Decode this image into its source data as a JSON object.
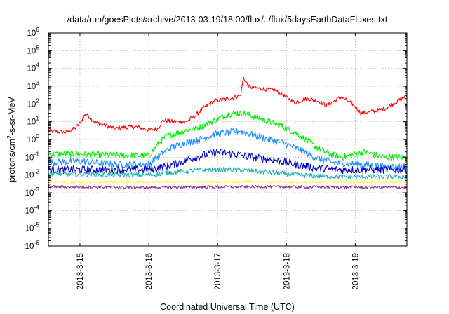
{
  "chart_data": {
    "type": "line",
    "title": "/data/run/goesPlots/archive/2013-03-19/18:00/flux/../flux/5daysEarthDataFluxes.txt",
    "xlabel": "Coordinated Universal Time (UTC)",
    "ylabel_parts": {
      "pre": "protons/cm",
      "sup": "2",
      "post": "-s-sr-MeV"
    },
    "y_scale": "log",
    "ylim": [
      1e-06,
      1000000.0
    ],
    "y_ticks": [
      {
        "base": "10",
        "exp": "-6",
        "value": 1e-06
      },
      {
        "base": "10",
        "exp": "-5",
        "value": 1e-05
      },
      {
        "base": "10",
        "exp": "-4",
        "value": 0.0001
      },
      {
        "base": "10",
        "exp": "-3",
        "value": 0.001
      },
      {
        "base": "10",
        "exp": "-2",
        "value": 0.01
      },
      {
        "base": "10",
        "exp": "-1",
        "value": 0.1
      },
      {
        "base": "10",
        "exp": "0",
        "value": 1
      },
      {
        "base": "10",
        "exp": "1",
        "value": 10
      },
      {
        "base": "10",
        "exp": "2",
        "value": 100
      },
      {
        "base": "10",
        "exp": "3",
        "value": 1000
      },
      {
        "base": "10",
        "exp": "4",
        "value": 10000
      },
      {
        "base": "10",
        "exp": "5",
        "value": 100000
      },
      {
        "base": "10",
        "exp": "6",
        "value": 1000000
      }
    ],
    "xlim": [
      "2013-03-14T13:00",
      "2013-03-19T18:00"
    ],
    "x_ticks": [
      {
        "label": "2013-3-15",
        "value": "2013-03-15T00:00"
      },
      {
        "label": "2013-3-16",
        "value": "2013-03-16T00:00"
      },
      {
        "label": "2013-3-17",
        "value": "2013-03-17T00:00"
      },
      {
        "label": "2013-3-18",
        "value": "2013-03-18T00:00"
      },
      {
        "label": "2013-3-19",
        "value": "2013-03-19T00:00"
      }
    ],
    "grid": true,
    "series": [
      {
        "color": "#ff0000",
        "noise": 0.12,
        "points": [
          [
            "2013-03-14T13:00",
            3
          ],
          [
            "2013-03-14T19:00",
            2.5
          ],
          [
            "2013-03-14T22:00",
            4
          ],
          [
            "2013-03-15T00:00",
            8
          ],
          [
            "2013-03-15T02:00",
            30
          ],
          [
            "2013-03-15T05:00",
            10
          ],
          [
            "2013-03-15T09:00",
            6
          ],
          [
            "2013-03-15T12:00",
            4
          ],
          [
            "2013-03-15T16:00",
            5
          ],
          [
            "2013-03-15T20:00",
            5
          ],
          [
            "2013-03-16T00:00",
            3.5
          ],
          [
            "2013-03-16T03:00",
            4
          ],
          [
            "2013-03-16T05:00",
            12
          ],
          [
            "2013-03-16T09:00",
            10
          ],
          [
            "2013-03-16T13:00",
            10
          ],
          [
            "2013-03-16T16:00",
            20
          ],
          [
            "2013-03-16T19:00",
            60
          ],
          [
            "2013-03-16T23:00",
            150
          ],
          [
            "2013-03-17T04:00",
            200
          ],
          [
            "2013-03-17T08:00",
            300
          ],
          [
            "2013-03-17T09:00",
            3000
          ],
          [
            "2013-03-17T11:00",
            900
          ],
          [
            "2013-03-17T16:00",
            700
          ],
          [
            "2013-03-17T20:00",
            600
          ],
          [
            "2013-03-17T23:00",
            300
          ],
          [
            "2013-03-18T03:00",
            120
          ],
          [
            "2013-03-18T07:00",
            200
          ],
          [
            "2013-03-18T11:00",
            150
          ],
          [
            "2013-03-18T14:00",
            80
          ],
          [
            "2013-03-18T19:00",
            250
          ],
          [
            "2013-03-18T23:00",
            100
          ],
          [
            "2013-03-19T02:00",
            30
          ],
          [
            "2013-03-19T07:00",
            40
          ],
          [
            "2013-03-19T11:00",
            60
          ],
          [
            "2013-03-19T15:00",
            150
          ],
          [
            "2013-03-19T18:00",
            300
          ]
        ]
      },
      {
        "color": "#00ee00",
        "noise": 0.18,
        "points": [
          [
            "2013-03-14T13:00",
            0.15
          ],
          [
            "2013-03-15T00:00",
            0.15
          ],
          [
            "2013-03-15T12:00",
            0.13
          ],
          [
            "2013-03-16T00:00",
            0.12
          ],
          [
            "2013-03-16T03:00",
            0.5
          ],
          [
            "2013-03-16T06:00",
            1.5
          ],
          [
            "2013-03-16T12:00",
            3
          ],
          [
            "2013-03-16T18:00",
            5
          ],
          [
            "2013-03-16T22:00",
            10
          ],
          [
            "2013-03-17T03:00",
            25
          ],
          [
            "2013-03-17T06:00",
            30
          ],
          [
            "2013-03-17T09:00",
            30
          ],
          [
            "2013-03-17T15:00",
            15
          ],
          [
            "2013-03-17T22:00",
            6
          ],
          [
            "2013-03-18T04:00",
            2
          ],
          [
            "2013-03-18T10:00",
            0.4
          ],
          [
            "2013-03-18T15:00",
            0.15
          ],
          [
            "2013-03-18T20:00",
            0.1
          ],
          [
            "2013-03-19T03:00",
            0.2
          ],
          [
            "2013-03-19T10:00",
            0.1
          ],
          [
            "2013-03-19T18:00",
            0.1
          ]
        ]
      },
      {
        "color": "#1e90ff",
        "noise": 0.2,
        "points": [
          [
            "2013-03-14T13:00",
            0.05
          ],
          [
            "2013-03-15T00:00",
            0.06
          ],
          [
            "2013-03-15T12:00",
            0.04
          ],
          [
            "2013-03-16T00:00",
            0.04
          ],
          [
            "2013-03-16T03:00",
            0.1
          ],
          [
            "2013-03-16T07:00",
            0.3
          ],
          [
            "2013-03-16T12:00",
            0.6
          ],
          [
            "2013-03-16T18:00",
            1
          ],
          [
            "2013-03-16T23:00",
            2
          ],
          [
            "2013-03-17T04:00",
            2.5
          ],
          [
            "2013-03-17T08:00",
            3
          ],
          [
            "2013-03-17T14:00",
            1.5
          ],
          [
            "2013-03-17T22:00",
            0.7
          ],
          [
            "2013-03-18T04:00",
            0.3
          ],
          [
            "2013-03-18T10:00",
            0.1
          ],
          [
            "2013-03-18T16:00",
            0.05
          ],
          [
            "2013-03-19T02:00",
            0.04
          ],
          [
            "2013-03-19T10:00",
            0.03
          ],
          [
            "2013-03-19T18:00",
            0.03
          ]
        ]
      },
      {
        "color": "#0000cc",
        "noise": 0.22,
        "points": [
          [
            "2013-03-14T13:00",
            0.02
          ],
          [
            "2013-03-15T00:00",
            0.02
          ],
          [
            "2013-03-15T12:00",
            0.02
          ],
          [
            "2013-03-16T00:00",
            0.02
          ],
          [
            "2013-03-16T06:00",
            0.03
          ],
          [
            "2013-03-16T12:00",
            0.06
          ],
          [
            "2013-03-16T18:00",
            0.12
          ],
          [
            "2013-03-17T00:00",
            0.2
          ],
          [
            "2013-03-17T06:00",
            0.15
          ],
          [
            "2013-03-17T12:00",
            0.1
          ],
          [
            "2013-03-17T20:00",
            0.07
          ],
          [
            "2013-03-18T03:00",
            0.04
          ],
          [
            "2013-03-18T10:00",
            0.025
          ],
          [
            "2013-03-18T18:00",
            0.02
          ],
          [
            "2013-03-19T06:00",
            0.02
          ],
          [
            "2013-03-19T18:00",
            0.02
          ]
        ]
      },
      {
        "color": "#20b2aa",
        "noise": 0.14,
        "points": [
          [
            "2013-03-14T13:00",
            0.012
          ],
          [
            "2013-03-15T12:00",
            0.01
          ],
          [
            "2013-03-16T00:00",
            0.01
          ],
          [
            "2013-03-16T10:00",
            0.015
          ],
          [
            "2013-03-16T20:00",
            0.02
          ],
          [
            "2013-03-17T06:00",
            0.02
          ],
          [
            "2013-03-17T16:00",
            0.015
          ],
          [
            "2013-03-18T04:00",
            0.01
          ],
          [
            "2013-03-18T16:00",
            0.008
          ],
          [
            "2013-03-19T06:00",
            0.008
          ],
          [
            "2013-03-19T18:00",
            0.008
          ]
        ]
      },
      {
        "color": "#ffff00",
        "noise": 0.06,
        "points": [
          [
            "2013-03-14T13:00",
            0.004
          ],
          [
            "2013-03-16T00:00",
            0.004
          ],
          [
            "2013-03-17T00:00",
            0.0042
          ],
          [
            "2013-03-18T00:00",
            0.004
          ],
          [
            "2013-03-19T18:00",
            0.004
          ]
        ]
      },
      {
        "color": "#8b2c8b",
        "noise": 0.08,
        "points": [
          [
            "2013-03-14T13:00",
            0.0022
          ],
          [
            "2013-03-16T00:00",
            0.002
          ],
          [
            "2013-03-17T12:00",
            0.0022
          ],
          [
            "2013-03-19T18:00",
            0.002
          ]
        ]
      }
    ]
  }
}
